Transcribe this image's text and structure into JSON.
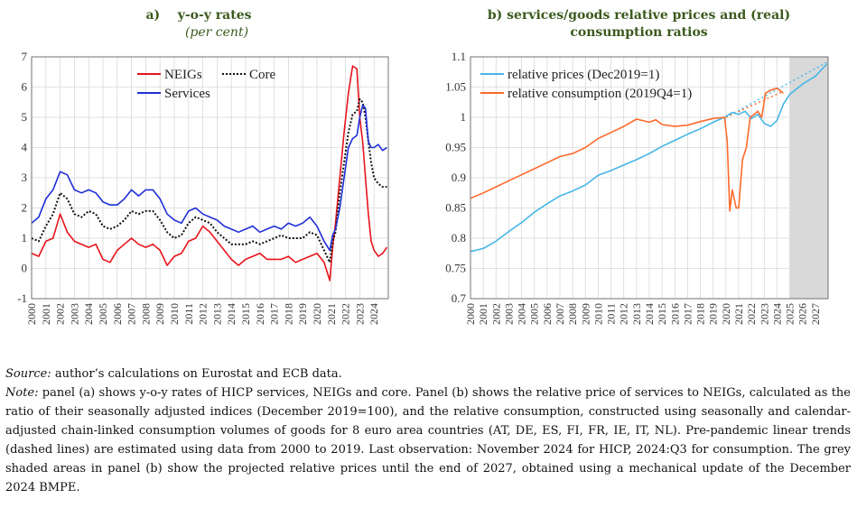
{
  "panels": {
    "a": {
      "letter": "a)",
      "title": "y-o-y rates",
      "subtitle": "(per cent)"
    },
    "b": {
      "letter": "b)",
      "title": "services/goods relative prices and (real) consumption ratios"
    }
  },
  "colors": {
    "neigs": "#e8141b",
    "core": "#111111",
    "services": "#1f2fd6",
    "relative_prices": "#45b6e6",
    "relative_consumption": "#ff6a2a",
    "title": "#3a5a1e",
    "shade": "#d9d9d9"
  },
  "chart_data": [
    {
      "type": "line",
      "title": "y-o-y rates",
      "subtitle": "(per cent)",
      "ylim": [
        -1,
        7
      ],
      "yticks": [
        "-1",
        "0",
        "1",
        "2",
        "3",
        "4",
        "5",
        "6",
        "7"
      ],
      "xlim": [
        2000,
        2025
      ],
      "xticks": [
        "2000",
        "2001",
        "2002",
        "2003",
        "2004",
        "2005",
        "2006",
        "2007",
        "2008",
        "2009",
        "2010",
        "2011",
        "2012",
        "2013",
        "2014",
        "2015",
        "2016",
        "2017",
        "2018",
        "2019",
        "2020",
        "2021",
        "2022",
        "2023",
        "2024"
      ],
      "legend_placement": "top-left",
      "series": [
        {
          "name": "NEIGs",
          "x": [
            2000.0,
            2000.5,
            2001.0,
            2001.5,
            2002.0,
            2002.5,
            2003.0,
            2003.5,
            2004.0,
            2004.5,
            2005.0,
            2005.5,
            2006.0,
            2006.5,
            2007.0,
            2007.5,
            2008.0,
            2008.5,
            2009.0,
            2009.5,
            2010.0,
            2010.5,
            2011.0,
            2011.5,
            2012.0,
            2012.5,
            2013.0,
            2013.5,
            2014.0,
            2014.5,
            2015.0,
            2015.5,
            2016.0,
            2016.5,
            2017.0,
            2017.5,
            2018.0,
            2018.5,
            2019.0,
            2019.5,
            2020.0,
            2020.5,
            2020.9,
            2021.1,
            2021.3,
            2021.6,
            2021.9,
            2022.2,
            2022.5,
            2022.8,
            2023.0,
            2023.2,
            2023.4,
            2023.6,
            2023.8,
            2024.0,
            2024.3,
            2024.6,
            2024.9
          ],
          "y": [
            0.5,
            0.4,
            0.9,
            1.0,
            1.8,
            1.2,
            0.9,
            0.8,
            0.7,
            0.8,
            0.3,
            0.2,
            0.6,
            0.8,
            1.0,
            0.8,
            0.7,
            0.8,
            0.6,
            0.1,
            0.4,
            0.5,
            0.9,
            1.0,
            1.4,
            1.2,
            0.9,
            0.6,
            0.3,
            0.1,
            0.3,
            0.4,
            0.5,
            0.3,
            0.3,
            0.3,
            0.4,
            0.2,
            0.3,
            0.4,
            0.5,
            0.2,
            -0.4,
            0.7,
            1.5,
            3.0,
            4.5,
            5.8,
            6.7,
            6.6,
            5.0,
            4.2,
            3.0,
            1.8,
            0.9,
            0.6,
            0.4,
            0.5,
            0.7
          ]
        },
        {
          "name": "Core",
          "x": [
            2000.0,
            2000.5,
            2001.0,
            2001.5,
            2002.0,
            2002.5,
            2003.0,
            2003.5,
            2004.0,
            2004.5,
            2005.0,
            2005.5,
            2006.0,
            2006.5,
            2007.0,
            2007.5,
            2008.0,
            2008.5,
            2009.0,
            2009.5,
            2010.0,
            2010.5,
            2011.0,
            2011.5,
            2012.0,
            2012.5,
            2013.0,
            2013.5,
            2014.0,
            2014.5,
            2015.0,
            2015.5,
            2016.0,
            2016.5,
            2017.0,
            2017.5,
            2018.0,
            2018.5,
            2019.0,
            2019.5,
            2020.0,
            2020.5,
            2020.9,
            2021.1,
            2021.3,
            2021.6,
            2021.9,
            2022.2,
            2022.5,
            2022.8,
            2023.0,
            2023.2,
            2023.4,
            2023.6,
            2023.8,
            2024.0,
            2024.3,
            2024.6,
            2024.9
          ],
          "y": [
            1.0,
            0.9,
            1.4,
            1.8,
            2.5,
            2.3,
            1.8,
            1.7,
            1.9,
            1.8,
            1.4,
            1.3,
            1.4,
            1.6,
            1.9,
            1.8,
            1.9,
            1.9,
            1.6,
            1.2,
            1.0,
            1.1,
            1.5,
            1.7,
            1.6,
            1.5,
            1.2,
            1.0,
            0.8,
            0.8,
            0.8,
            0.9,
            0.8,
            0.9,
            1.0,
            1.1,
            1.0,
            1.0,
            1.0,
            1.2,
            1.1,
            0.6,
            0.2,
            0.9,
            1.2,
            2.5,
            3.5,
            4.5,
            5.1,
            5.2,
            5.6,
            5.5,
            5.0,
            4.2,
            3.5,
            3.0,
            2.8,
            2.7,
            2.7
          ]
        },
        {
          "name": "Services",
          "x": [
            2000.0,
            2000.5,
            2001.0,
            2001.5,
            2002.0,
            2002.5,
            2003.0,
            2003.5,
            2004.0,
            2004.5,
            2005.0,
            2005.5,
            2006.0,
            2006.5,
            2007.0,
            2007.5,
            2008.0,
            2008.5,
            2009.0,
            2009.5,
            2010.0,
            2010.5,
            2011.0,
            2011.5,
            2012.0,
            2012.5,
            2013.0,
            2013.5,
            2014.0,
            2014.5,
            2015.0,
            2015.5,
            2016.0,
            2016.5,
            2017.0,
            2017.5,
            2018.0,
            2018.5,
            2019.0,
            2019.5,
            2020.0,
            2020.5,
            2020.9,
            2021.1,
            2021.3,
            2021.6,
            2021.9,
            2022.2,
            2022.5,
            2022.8,
            2023.0,
            2023.2,
            2023.4,
            2023.6,
            2023.8,
            2024.0,
            2024.3,
            2024.6,
            2024.9
          ],
          "y": [
            1.5,
            1.7,
            2.3,
            2.6,
            3.2,
            3.1,
            2.6,
            2.5,
            2.6,
            2.5,
            2.2,
            2.1,
            2.1,
            2.3,
            2.6,
            2.4,
            2.6,
            2.6,
            2.3,
            1.8,
            1.6,
            1.5,
            1.9,
            2.0,
            1.8,
            1.7,
            1.6,
            1.4,
            1.3,
            1.2,
            1.3,
            1.4,
            1.2,
            1.3,
            1.4,
            1.3,
            1.5,
            1.4,
            1.5,
            1.7,
            1.4,
            0.9,
            0.6,
            1.1,
            1.3,
            2.0,
            3.0,
            4.0,
            4.3,
            4.4,
            5.0,
            5.4,
            5.3,
            4.2,
            4.0,
            4.0,
            4.1,
            3.9,
            4.0
          ]
        }
      ]
    },
    {
      "type": "line",
      "title": "services/goods relative prices and (real) consumption ratios",
      "ylim": [
        0.7,
        1.1
      ],
      "yticks": [
        "0.7",
        "0.75",
        "0.8",
        "0.85",
        "0.9",
        "0.95",
        "1",
        "1.05",
        "1.1"
      ],
      "xlim": [
        2000,
        2028
      ],
      "xticks": [
        "2000",
        "2001",
        "2002",
        "2003",
        "2004",
        "2005",
        "2006",
        "2007",
        "2008",
        "2009",
        "2010",
        "2011",
        "2012",
        "2013",
        "2014",
        "2015",
        "2016",
        "2017",
        "2018",
        "2019",
        "2020",
        "2021",
        "2022",
        "2023",
        "2024",
        "2025",
        "2026",
        "2027"
      ],
      "shaded_region": [
        2025,
        2028
      ],
      "legend_placement": "top-left",
      "series": [
        {
          "name": "relative prices (Dec2019=1)",
          "x": [
            2000.0,
            2001,
            2002,
            2003,
            2004,
            2005,
            2006,
            2007,
            2008,
            2009,
            2010,
            2011,
            2012,
            2013,
            2014,
            2015,
            2016,
            2017,
            2018,
            2019,
            2019.9,
            2020.5,
            2021.0,
            2021.5,
            2022.0,
            2022.5,
            2023.0,
            2023.5,
            2024.0,
            2024.5,
            2025.0,
            2026.0,
            2027.0,
            2027.9
          ],
          "y": [
            0.778,
            0.783,
            0.795,
            0.811,
            0.826,
            0.843,
            0.857,
            0.87,
            0.878,
            0.888,
            0.904,
            0.912,
            0.921,
            0.93,
            0.94,
            0.952,
            0.962,
            0.972,
            0.981,
            0.992,
            1.0,
            1.008,
            1.005,
            1.01,
            0.998,
            1.005,
            0.99,
            0.985,
            0.995,
            1.022,
            1.038,
            1.055,
            1.068,
            1.088
          ]
        },
        {
          "name": "relative consumption (2019Q4=1)",
          "x": [
            2000.0,
            2001,
            2002,
            2003,
            2004,
            2005,
            2006,
            2007,
            2008,
            2009,
            2010,
            2011,
            2012,
            2013,
            2014,
            2014.5,
            2015,
            2016,
            2017,
            2018,
            2019,
            2019.9,
            2020.1,
            2020.3,
            2020.5,
            2020.8,
            2021.0,
            2021.3,
            2021.6,
            2021.9,
            2022.2,
            2022.5,
            2022.8,
            2023.1,
            2023.5,
            2024.0,
            2024.5
          ],
          "y": [
            0.866,
            0.875,
            0.885,
            0.895,
            0.905,
            0.915,
            0.925,
            0.935,
            0.94,
            0.95,
            0.965,
            0.975,
            0.985,
            0.997,
            0.992,
            0.996,
            0.988,
            0.985,
            0.987,
            0.993,
            0.998,
            1.0,
            0.96,
            0.845,
            0.88,
            0.85,
            0.85,
            0.93,
            0.95,
            1.0,
            1.005,
            1.01,
            1.0,
            1.04,
            1.045,
            1.048,
            1.04
          ]
        }
      ],
      "trend_lines": [
        {
          "series": "relative prices (Dec2019=1)",
          "x": [
            2020,
            2028
          ],
          "y": [
            1.0,
            1.092
          ]
        },
        {
          "series": "relative consumption (2019Q4=1)",
          "x": [
            2020,
            2024.5
          ],
          "y": [
            1.0,
            1.043
          ]
        }
      ]
    }
  ],
  "footnote": {
    "source_label": "Source:",
    "source_text": " author’s calculations on Eurostat and ECB data.",
    "note_label": "Note:",
    "note_text": " panel (a) shows y-o-y rates of HICP services, NEIGs and core. Panel (b) shows the relative price of services to NEIGs, calculated as the ratio of their seasonally adjusted indices (December 2019=100), and the relative consumption, constructed using seasonally and calendar-adjusted chain-linked consumption volumes of goods for 8 euro area countries (AT, DE, ES, FI, FR, IE, IT, NL). Pre-pandemic linear trends (dashed lines) are estimated using data from 2000 to 2019. Last observation: November 2024 for HICP, 2024:Q3 for consumption. The grey shaded areas in panel (b) show the projected relative prices until the end of 2027, obtained using a mechanical update of the December 2024 BMPE."
  }
}
